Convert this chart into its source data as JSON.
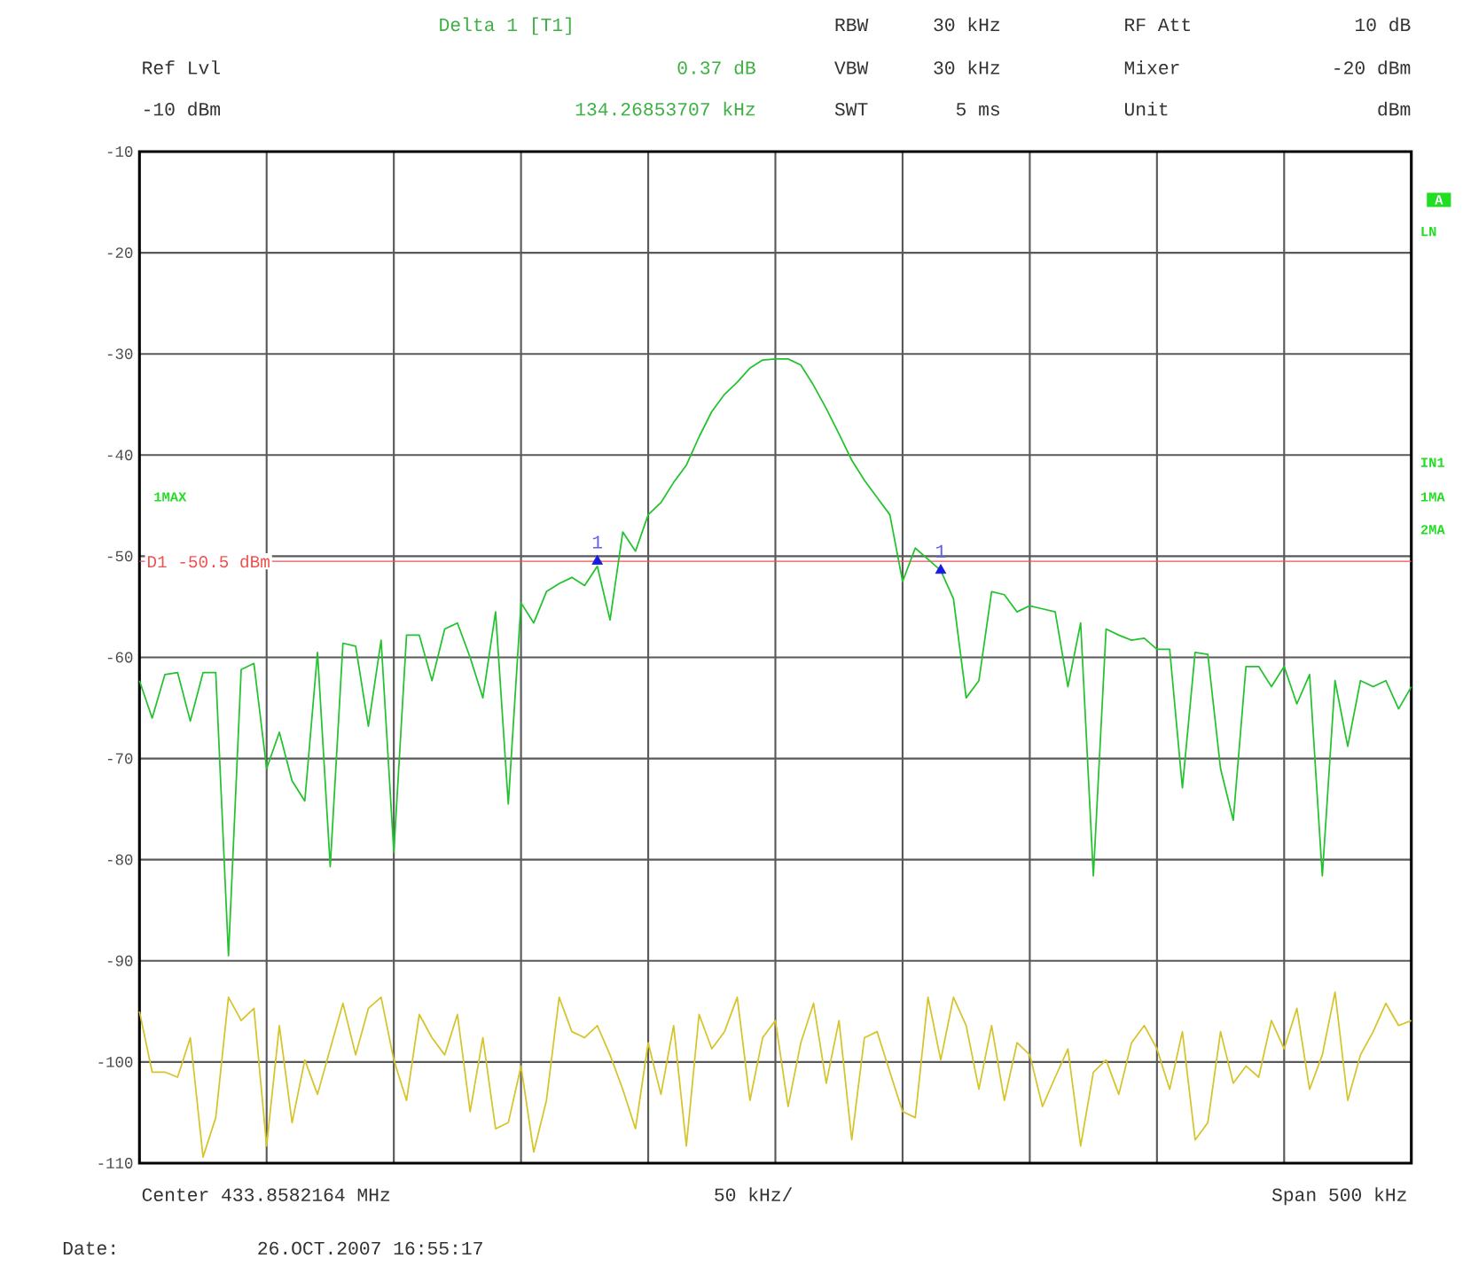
{
  "chart_data": {
    "type": "line",
    "categories": [
      null,
      null,
      null,
      null,
      null,
      null,
      null,
      null,
      null,
      null,
      null,
      null,
      null,
      null,
      null,
      null,
      null,
      null,
      null,
      null,
      null,
      null,
      null,
      null,
      null,
      null,
      null,
      null,
      null,
      null,
      null,
      null,
      null,
      null,
      null,
      null,
      null,
      null,
      null,
      null,
      null,
      null,
      null,
      null,
      null,
      null,
      null,
      null,
      null,
      null,
      null,
      null,
      null,
      null,
      null,
      null,
      null,
      null,
      null,
      null,
      null,
      null,
      null,
      null,
      null,
      null,
      null,
      null,
      null,
      null,
      null,
      null,
      null,
      null,
      null,
      null,
      null,
      null,
      null,
      null,
      null,
      null,
      null,
      null,
      null,
      null,
      null,
      null,
      null,
      null,
      null,
      null,
      null,
      null,
      null,
      null,
      null,
      null,
      null,
      null,
      null
    ],
    "ylim": [
      -110,
      -10
    ],
    "yticks": [
      -10,
      -20,
      -30,
      -40,
      -50,
      -60,
      -70,
      -80,
      -90,
      -100,
      -110
    ],
    "grid": true,
    "tick_labels": "y",
    "series": [
      {
        "color": "#22c32e",
        "values": [
          -62.3,
          -66,
          -61.7,
          -61.5,
          -66.3,
          -61.5,
          -61.5,
          -89.5,
          -61.2,
          -60.6,
          -71,
          -67.4,
          -72.2,
          -74.2,
          -59.5,
          -80.7,
          -58.6,
          -58.9,
          -66.8,
          -58.3,
          -79.3,
          -57.8,
          -57.8,
          -62.3,
          -57.2,
          -56.6,
          -60,
          -64,
          -55.5,
          -74.5,
          -54.6,
          -56.6,
          -53.5,
          -52.7,
          -52.1,
          -52.9,
          -51,
          -56.3,
          -47.6,
          -49.5,
          -45.9,
          -44.7,
          -42.7,
          -41,
          -38.2,
          -35.7,
          -34,
          -32.8,
          -31.4,
          -30.6,
          -30.5,
          -30.5,
          -31.1,
          -33.1,
          -35.4,
          -37.9,
          -40.5,
          -42.5,
          -44.2,
          -45.9,
          -52.5,
          -49.2,
          -50.3,
          -51.4,
          -54.2,
          -64,
          -62.3,
          -53.5,
          -53.8,
          -55.5,
          -54.9,
          -55.2,
          -55.5,
          -62.9,
          -56.6,
          -81.6,
          -57.2,
          -57.8,
          -58.3,
          -58.1,
          -59.2,
          -59.2,
          -72.9,
          -59.5,
          -59.7,
          -71,
          -76.1,
          -60.9,
          -60.9,
          -62.9,
          -60.9,
          -64.6,
          -61.7,
          -81.6,
          -62.3,
          -68.8,
          -62.3,
          -62.9,
          -62.3,
          -65.1,
          -62.9
        ]
      },
      {
        "color": "#d6c42a",
        "values": [
          -95,
          -101,
          -101,
          -101.5,
          -97.6,
          -109.4,
          -105.5,
          -93.6,
          -95.9,
          -94.7,
          -108.3,
          -96.4,
          -106,
          -99.8,
          -103.2,
          -98.7,
          -94.2,
          -99.3,
          -94.7,
          -93.6,
          -99.8,
          -103.8,
          -95.3,
          -97.6,
          -99.3,
          -95.3,
          -104.9,
          -97.6,
          -106.6,
          -106,
          -100.4,
          -108.9,
          -103.8,
          -93.6,
          -97,
          -97.6,
          -96.4,
          -99.3,
          -102.7,
          -106.6,
          -98.1,
          -103.2,
          -96.4,
          -108.3,
          -95.3,
          -98.7,
          -97,
          -93.6,
          -103.8,
          -97.6,
          -95.9,
          -104.4,
          -98.1,
          -94.2,
          -102.1,
          -95.9,
          -107.7,
          -97.6,
          -97,
          -101,
          -104.9,
          -105.5,
          -93.6,
          -99.8,
          -93.6,
          -96.4,
          -102.7,
          -96.4,
          -103.8,
          -98.1,
          -99.3,
          -104.4,
          -101.5,
          -98.7,
          -108.3,
          -101,
          -99.8,
          -103.2,
          -98.1,
          -96.4,
          -98.7,
          -102.7,
          -97,
          -107.7,
          -106,
          -97,
          -102.1,
          -100.4,
          -101.5,
          -95.9,
          -98.7,
          -94.7,
          -102.7,
          -99.3,
          -93.1,
          -103.8,
          -99.3,
          -97,
          -94.2,
          -96.4,
          -95.9
        ]
      },
      {
        "type": "scatter",
        "marker": "triangle",
        "color": "#1a1ae0",
        "values": [
          null,
          null,
          null,
          null,
          null,
          null,
          null,
          null,
          null,
          null,
          null,
          null,
          null,
          null,
          null,
          null,
          null,
          null,
          null,
          null,
          null,
          null,
          null,
          null,
          null,
          null,
          null,
          null,
          null,
          null,
          null,
          null,
          null,
          null,
          null,
          null,
          -50.5,
          null,
          null,
          null,
          null,
          null,
          null,
          null,
          null,
          null,
          null,
          null,
          null,
          null,
          null,
          null,
          null,
          null,
          null,
          null,
          null,
          null,
          null,
          null,
          null,
          null,
          null,
          -51.4,
          null,
          null,
          null,
          null,
          null,
          null,
          null,
          null,
          null,
          null,
          null,
          null,
          null,
          null,
          null,
          null,
          null,
          null,
          null,
          null,
          null,
          null,
          null,
          null,
          null,
          null,
          null,
          null,
          null,
          null,
          null,
          null,
          null,
          null,
          null,
          null,
          null
        ]
      }
    ],
    "ref_lines": [
      {
        "axis": "y",
        "value": -50.5,
        "label": "D1 -50.5 dBm",
        "color": "#f05050"
      }
    ],
    "annotations": [
      "Delta 1 [T1]",
      "0.37 dB",
      "134.26853707 kHz",
      "Ref Lvl",
      "-10 dBm",
      "RBW",
      "30 kHz",
      "VBW",
      "30 kHz",
      "SWT",
      "5 ms",
      "RF Att",
      "10 dB",
      "Mixer",
      "-20 dBm",
      "Unit",
      "dBm",
      "Center 433.8582164 MHz",
      "50 kHz/",
      "Span 500 kHz",
      "Date:",
      "26.OCT.2007  16:55:17",
      "1MAX",
      "A",
      "LN",
      "IN1",
      "1MA",
      "2MA",
      "1",
      "1"
    ]
  }
}
